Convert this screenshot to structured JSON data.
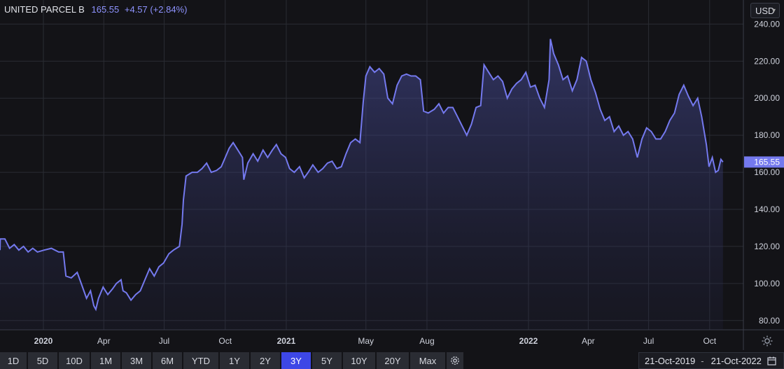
{
  "header": {
    "name": "UNITED PARCEL B",
    "price": "165.55",
    "change": "+4.57 (+2.84%)"
  },
  "currency": {
    "label": "USD"
  },
  "colors": {
    "line": "#7479ee",
    "active": "#3d47e6",
    "background": "#131317",
    "grid": "#2a2c33"
  },
  "toolbar": {
    "ranges": [
      "1D",
      "5D",
      "10D",
      "1M",
      "3M",
      "6M",
      "YTD",
      "1Y",
      "2Y",
      "3Y",
      "5Y",
      "10Y",
      "20Y",
      "Max"
    ],
    "active": "3Y",
    "settings_icon": "gear-icon"
  },
  "date_range": {
    "from": "21-Oct-2019",
    "separator": "-",
    "to": "21-Oct-2022",
    "icon": "calendar-icon"
  },
  "chart_data": {
    "type": "area",
    "title": "",
    "y_ticks": [
      "80.00",
      "100.00",
      "120.00",
      "140.00",
      "160.00",
      "180.00",
      "200.00",
      "220.00",
      "240.00"
    ],
    "ylim": [
      75,
      253
    ],
    "x_tick_labels": [
      {
        "label": "2020",
        "date": "2020-01-01"
      },
      {
        "label": "Apr",
        "date": "2020-04-01"
      },
      {
        "label": "Jul",
        "date": "2020-07-01"
      },
      {
        "label": "Oct",
        "date": "2020-10-01"
      },
      {
        "label": "2021",
        "date": "2021-01-01"
      },
      {
        "label": "May",
        "date": "2021-05-01"
      },
      {
        "label": "Aug",
        "date": "2021-08-01"
      },
      {
        "label": "2022",
        "date": "2022-01-01"
      },
      {
        "label": "Apr",
        "date": "2022-04-01"
      },
      {
        "label": "Jul",
        "date": "2022-07-01"
      },
      {
        "label": "Oct",
        "date": "2022-10-01"
      }
    ],
    "last_value_label": "165.55",
    "grid": true,
    "series": [
      {
        "points": [
          [
            "2019-10-21",
            118
          ],
          [
            "2019-10-28",
            124
          ],
          [
            "2019-11-04",
            124
          ],
          [
            "2019-11-11",
            119
          ],
          [
            "2019-11-18",
            121
          ],
          [
            "2019-11-25",
            118
          ],
          [
            "2019-12-02",
            120
          ],
          [
            "2019-12-09",
            117
          ],
          [
            "2019-12-16",
            119
          ],
          [
            "2019-12-23",
            117
          ],
          [
            "2020-01-02",
            118
          ],
          [
            "2020-01-13",
            119
          ],
          [
            "2020-01-24",
            117
          ],
          [
            "2020-01-31",
            117
          ],
          [
            "2020-02-04",
            104
          ],
          [
            "2020-02-12",
            103
          ],
          [
            "2020-02-21",
            106
          ],
          [
            "2020-02-28",
            99
          ],
          [
            "2020-03-06",
            92
          ],
          [
            "2020-03-12",
            96
          ],
          [
            "2020-03-17",
            88
          ],
          [
            "2020-03-20",
            86
          ],
          [
            "2020-03-24",
            92
          ],
          [
            "2020-03-31",
            98
          ],
          [
            "2020-04-07",
            94
          ],
          [
            "2020-04-14",
            97
          ],
          [
            "2020-04-20",
            100
          ],
          [
            "2020-04-27",
            102
          ],
          [
            "2020-04-30",
            96
          ],
          [
            "2020-05-05",
            95
          ],
          [
            "2020-05-12",
            91
          ],
          [
            "2020-05-19",
            94
          ],
          [
            "2020-05-26",
            96
          ],
          [
            "2020-06-02",
            102
          ],
          [
            "2020-06-09",
            108
          ],
          [
            "2020-06-16",
            104
          ],
          [
            "2020-06-23",
            109
          ],
          [
            "2020-06-30",
            111
          ],
          [
            "2020-07-08",
            116
          ],
          [
            "2020-07-15",
            118
          ],
          [
            "2020-07-24",
            120
          ],
          [
            "2020-07-28",
            132
          ],
          [
            "2020-07-30",
            145
          ],
          [
            "2020-08-03",
            158
          ],
          [
            "2020-08-12",
            160
          ],
          [
            "2020-08-20",
            160
          ],
          [
            "2020-08-27",
            162
          ],
          [
            "2020-09-03",
            165
          ],
          [
            "2020-09-10",
            160
          ],
          [
            "2020-09-18",
            161
          ],
          [
            "2020-09-25",
            163
          ],
          [
            "2020-10-01",
            168
          ],
          [
            "2020-10-07",
            173
          ],
          [
            "2020-10-13",
            176
          ],
          [
            "2020-10-20",
            172
          ],
          [
            "2020-10-27",
            168
          ],
          [
            "2020-10-29",
            156
          ],
          [
            "2020-11-04",
            165
          ],
          [
            "2020-11-12",
            170
          ],
          [
            "2020-11-19",
            166
          ],
          [
            "2020-11-27",
            172
          ],
          [
            "2020-12-04",
            168
          ],
          [
            "2020-12-11",
            172
          ],
          [
            "2020-12-17",
            175
          ],
          [
            "2020-12-24",
            170
          ],
          [
            "2020-12-31",
            168
          ],
          [
            "2021-01-06",
            162
          ],
          [
            "2021-01-13",
            160
          ],
          [
            "2021-01-21",
            163
          ],
          [
            "2021-01-28",
            157
          ],
          [
            "2021-02-03",
            160
          ],
          [
            "2021-02-10",
            164
          ],
          [
            "2021-02-18",
            160
          ],
          [
            "2021-02-25",
            162
          ],
          [
            "2021-03-04",
            165
          ],
          [
            "2021-03-11",
            166
          ],
          [
            "2021-03-18",
            162
          ],
          [
            "2021-03-25",
            163
          ],
          [
            "2021-04-01",
            170
          ],
          [
            "2021-04-08",
            176
          ],
          [
            "2021-04-15",
            178
          ],
          [
            "2021-04-22",
            176
          ],
          [
            "2021-04-27",
            198
          ],
          [
            "2021-05-01",
            212
          ],
          [
            "2021-05-07",
            217
          ],
          [
            "2021-05-14",
            214
          ],
          [
            "2021-05-21",
            216
          ],
          [
            "2021-05-28",
            213
          ],
          [
            "2021-06-03",
            200
          ],
          [
            "2021-06-10",
            197
          ],
          [
            "2021-06-17",
            207
          ],
          [
            "2021-06-24",
            212
          ],
          [
            "2021-07-01",
            213
          ],
          [
            "2021-07-08",
            212
          ],
          [
            "2021-07-15",
            212
          ],
          [
            "2021-07-22",
            210
          ],
          [
            "2021-07-27",
            193
          ],
          [
            "2021-08-03",
            192
          ],
          [
            "2021-08-12",
            194
          ],
          [
            "2021-08-19",
            197
          ],
          [
            "2021-08-26",
            192
          ],
          [
            "2021-09-02",
            195
          ],
          [
            "2021-09-09",
            195
          ],
          [
            "2021-09-16",
            190
          ],
          [
            "2021-09-23",
            185
          ],
          [
            "2021-09-30",
            180
          ],
          [
            "2021-10-07",
            186
          ],
          [
            "2021-10-14",
            195
          ],
          [
            "2021-10-21",
            196
          ],
          [
            "2021-10-26",
            218
          ],
          [
            "2021-11-02",
            214
          ],
          [
            "2021-11-09",
            210
          ],
          [
            "2021-11-16",
            212
          ],
          [
            "2021-11-23",
            209
          ],
          [
            "2021-11-30",
            200
          ],
          [
            "2021-12-07",
            205
          ],
          [
            "2021-12-14",
            208
          ],
          [
            "2021-12-21",
            210
          ],
          [
            "2021-12-28",
            214
          ],
          [
            "2022-01-04",
            206
          ],
          [
            "2022-01-11",
            207
          ],
          [
            "2022-01-18",
            200
          ],
          [
            "2022-01-25",
            195
          ],
          [
            "2022-02-01",
            210
          ],
          [
            "2022-02-03",
            232
          ],
          [
            "2022-02-08",
            224
          ],
          [
            "2022-02-15",
            218
          ],
          [
            "2022-02-22",
            210
          ],
          [
            "2022-03-01",
            212
          ],
          [
            "2022-03-08",
            204
          ],
          [
            "2022-03-15",
            210
          ],
          [
            "2022-03-22",
            222
          ],
          [
            "2022-03-29",
            220
          ],
          [
            "2022-04-05",
            210
          ],
          [
            "2022-04-12",
            203
          ],
          [
            "2022-04-19",
            194
          ],
          [
            "2022-04-26",
            188
          ],
          [
            "2022-05-03",
            190
          ],
          [
            "2022-05-10",
            182
          ],
          [
            "2022-05-17",
            185
          ],
          [
            "2022-05-24",
            180
          ],
          [
            "2022-05-31",
            182
          ],
          [
            "2022-06-07",
            178
          ],
          [
            "2022-06-14",
            168
          ],
          [
            "2022-06-21",
            178
          ],
          [
            "2022-06-28",
            184
          ],
          [
            "2022-07-05",
            182
          ],
          [
            "2022-07-12",
            178
          ],
          [
            "2022-07-19",
            178
          ],
          [
            "2022-07-26",
            182
          ],
          [
            "2022-08-02",
            188
          ],
          [
            "2022-08-09",
            192
          ],
          [
            "2022-08-16",
            202
          ],
          [
            "2022-08-23",
            207
          ],
          [
            "2022-08-30",
            201
          ],
          [
            "2022-09-06",
            196
          ],
          [
            "2022-09-13",
            200
          ],
          [
            "2022-09-19",
            190
          ],
          [
            "2022-09-26",
            175
          ],
          [
            "2022-09-30",
            163
          ],
          [
            "2022-10-05",
            168
          ],
          [
            "2022-10-10",
            160
          ],
          [
            "2022-10-14",
            161
          ],
          [
            "2022-10-18",
            167
          ],
          [
            "2022-10-21",
            165.55
          ]
        ]
      }
    ]
  }
}
